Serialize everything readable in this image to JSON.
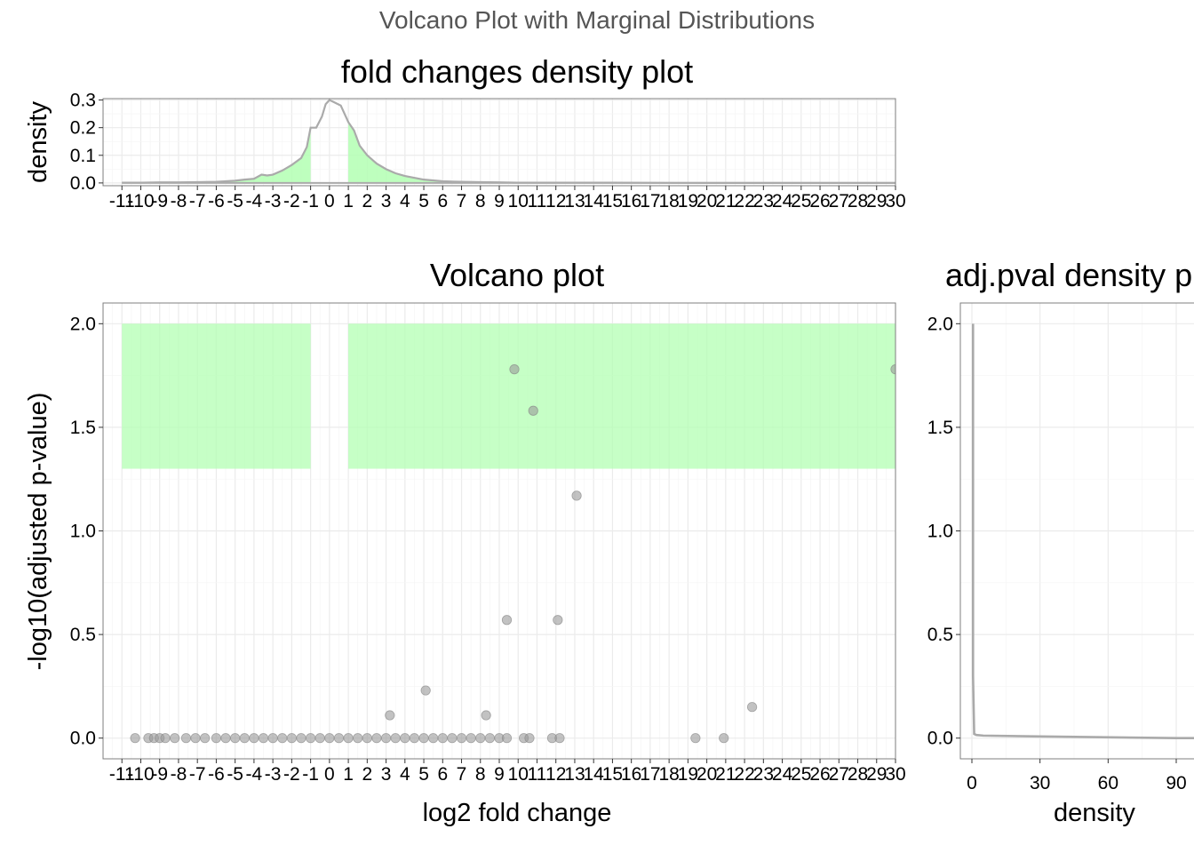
{
  "title": "Volcano Plot with Marginal Distributions",
  "colors": {
    "highlight": "#b3ffb3",
    "points": "#999999",
    "density_line": "#aaaaaa",
    "grid_major": "#ebebeb",
    "grid_minor": "#f5f5f5",
    "panel_border": "#7f7f7f"
  },
  "chart_data": [
    {
      "id": "fc_density",
      "type": "area",
      "title": "fold changes density plot",
      "xlabel": "",
      "ylabel": "density",
      "xlim": [
        -12,
        30
      ],
      "ylim": [
        0,
        0.3
      ],
      "x_ticks": [
        "-11",
        "-10",
        "-9",
        "-8",
        "-7",
        "-6",
        "-5",
        "-4",
        "-3",
        "-2",
        "-1",
        "0",
        "1",
        "2",
        "3",
        "4",
        "5",
        "6",
        "7",
        "8",
        "9",
        "10",
        "11",
        "12",
        "13",
        "14",
        "15",
        "16",
        "17",
        "18",
        "19",
        "20",
        "21",
        "22",
        "23",
        "24",
        "25",
        "26",
        "27",
        "28",
        "29",
        "30"
      ],
      "y_ticks": [
        "0.0",
        "0.1",
        "0.2",
        "0.3"
      ],
      "shaded_regions_x": [
        [
          -11,
          -1
        ],
        [
          1,
          30
        ]
      ],
      "x": [
        -11,
        -10,
        -9,
        -8,
        -7,
        -6,
        -5,
        -4.5,
        -4,
        -3.6,
        -3.3,
        -3,
        -2.5,
        -2,
        -1.5,
        -1.2,
        -1,
        -0.7,
        -0.4,
        -0.2,
        0,
        0.3,
        0.6,
        1,
        1.3,
        1.6,
        2,
        2.5,
        3,
        3.5,
        4,
        5,
        6,
        7,
        8,
        9,
        10,
        12,
        15,
        20,
        25,
        30
      ],
      "y": [
        0.001,
        0.001,
        0.002,
        0.002,
        0.003,
        0.004,
        0.008,
        0.012,
        0.015,
        0.03,
        0.027,
        0.03,
        0.045,
        0.065,
        0.09,
        0.13,
        0.2,
        0.2,
        0.24,
        0.285,
        0.3,
        0.29,
        0.28,
        0.22,
        0.19,
        0.135,
        0.1,
        0.07,
        0.05,
        0.035,
        0.025,
        0.012,
        0.006,
        0.004,
        0.003,
        0.002,
        0.001,
        0.001,
        0.001,
        0.0,
        0.0,
        0.0
      ]
    },
    {
      "id": "volcano",
      "type": "scatter",
      "title": "Volcano plot",
      "xlabel": "log2 fold change",
      "ylabel": "-log10(adjusted p-value)",
      "xlim": [
        -12,
        30
      ],
      "ylim": [
        -0.1,
        2.1
      ],
      "x_ticks": [
        "-11",
        "-10",
        "-9",
        "-8",
        "-7",
        "-6",
        "-5",
        "-4",
        "-3",
        "-2",
        "-1",
        "0",
        "1",
        "2",
        "3",
        "4",
        "5",
        "6",
        "7",
        "8",
        "9",
        "10",
        "11",
        "12",
        "13",
        "14",
        "15",
        "16",
        "17",
        "18",
        "19",
        "20",
        "21",
        "22",
        "23",
        "24",
        "25",
        "26",
        "27",
        "28",
        "29",
        "30"
      ],
      "y_ticks": [
        "0.0",
        "0.5",
        "1.0",
        "1.5",
        "2.0"
      ],
      "shaded_regions": [
        {
          "x": [
            -11,
            -1
          ],
          "y": [
            1.3,
            2.0
          ]
        },
        {
          "x": [
            1,
            30
          ],
          "y": [
            1.3,
            2.0
          ]
        }
      ],
      "points": [
        [
          9.8,
          1.78
        ],
        [
          30,
          1.78
        ],
        [
          10.8,
          1.58
        ],
        [
          13.1,
          1.17
        ],
        [
          9.4,
          0.57
        ],
        [
          12.1,
          0.57
        ],
        [
          5.1,
          0.23
        ],
        [
          3.2,
          0.11
        ],
        [
          8.3,
          0.11
        ],
        [
          22.4,
          0.15
        ],
        [
          -10.3,
          0
        ],
        [
          -9.6,
          0
        ],
        [
          -9.3,
          0
        ],
        [
          -9.0,
          0
        ],
        [
          -8.7,
          0
        ],
        [
          -8.2,
          0
        ],
        [
          -7.6,
          0
        ],
        [
          -7.1,
          0
        ],
        [
          -6.6,
          0
        ],
        [
          -6.0,
          0
        ],
        [
          -5.5,
          0
        ],
        [
          -5.0,
          0
        ],
        [
          -4.5,
          0
        ],
        [
          -4.0,
          0
        ],
        [
          -3.5,
          0
        ],
        [
          -3.0,
          0
        ],
        [
          -2.5,
          0
        ],
        [
          -2.0,
          0
        ],
        [
          -1.5,
          0
        ],
        [
          -1.0,
          0
        ],
        [
          -0.5,
          0
        ],
        [
          0,
          0
        ],
        [
          0.5,
          0
        ],
        [
          1.0,
          0
        ],
        [
          1.5,
          0
        ],
        [
          2.0,
          0
        ],
        [
          2.5,
          0
        ],
        [
          3.0,
          0
        ],
        [
          3.5,
          0
        ],
        [
          4.0,
          0
        ],
        [
          4.5,
          0
        ],
        [
          5.0,
          0
        ],
        [
          5.5,
          0
        ],
        [
          6.0,
          0
        ],
        [
          6.5,
          0
        ],
        [
          7.0,
          0
        ],
        [
          7.5,
          0
        ],
        [
          8.0,
          0
        ],
        [
          8.5,
          0
        ],
        [
          9.0,
          0
        ],
        [
          9.4,
          0
        ],
        [
          10.3,
          0
        ],
        [
          10.6,
          0
        ],
        [
          11.8,
          0
        ],
        [
          12.2,
          0
        ],
        [
          19.4,
          0
        ],
        [
          20.9,
          0
        ]
      ]
    },
    {
      "id": "pval_density",
      "type": "line",
      "title": "adj.pval density plot",
      "xlabel": "density",
      "ylabel": "",
      "xlim": [
        -5,
        120
      ],
      "ylim": [
        -0.1,
        2.1
      ],
      "x_ticks": [
        "0",
        "30",
        "60",
        "90"
      ],
      "y_ticks": [
        "0.0",
        "0.5",
        "1.0",
        "1.5",
        "2.0"
      ],
      "density_x": [
        120,
        90,
        30,
        5,
        2,
        1,
        0.5,
        0.5
      ],
      "value_y": [
        0.0,
        0.0,
        0.008,
        0.012,
        0.015,
        0.02,
        0.3,
        2.0
      ]
    }
  ]
}
